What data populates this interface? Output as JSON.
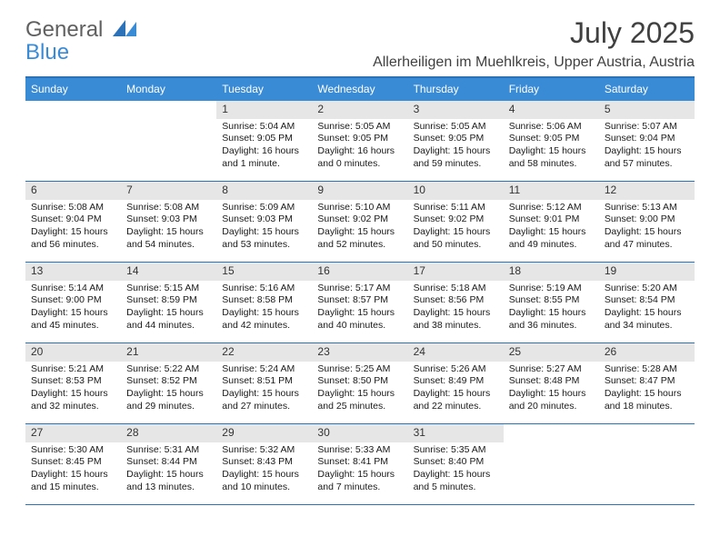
{
  "logo": {
    "line1": "General",
    "line2": "Blue"
  },
  "title": "July 2025",
  "location": "Allerheiligen im Muehlkreis, Upper Austria, Austria",
  "colors": {
    "header_bg": "#3a8bd6",
    "header_border": "#2c72b8",
    "daynum_bg": "#e6e6e6",
    "text": "#1a1a1a",
    "logo_gray": "#606060",
    "logo_blue": "#3a8bd6",
    "page_bg": "#ffffff"
  },
  "days_of_week": [
    "Sunday",
    "Monday",
    "Tuesday",
    "Wednesday",
    "Thursday",
    "Friday",
    "Saturday"
  ],
  "weeks": [
    [
      null,
      null,
      {
        "n": 1,
        "sunrise": "5:04 AM",
        "sunset": "9:05 PM",
        "daylight": "16 hours and 1 minute."
      },
      {
        "n": 2,
        "sunrise": "5:05 AM",
        "sunset": "9:05 PM",
        "daylight": "16 hours and 0 minutes."
      },
      {
        "n": 3,
        "sunrise": "5:05 AM",
        "sunset": "9:05 PM",
        "daylight": "15 hours and 59 minutes."
      },
      {
        "n": 4,
        "sunrise": "5:06 AM",
        "sunset": "9:05 PM",
        "daylight": "15 hours and 58 minutes."
      },
      {
        "n": 5,
        "sunrise": "5:07 AM",
        "sunset": "9:04 PM",
        "daylight": "15 hours and 57 minutes."
      }
    ],
    [
      {
        "n": 6,
        "sunrise": "5:08 AM",
        "sunset": "9:04 PM",
        "daylight": "15 hours and 56 minutes."
      },
      {
        "n": 7,
        "sunrise": "5:08 AM",
        "sunset": "9:03 PM",
        "daylight": "15 hours and 54 minutes."
      },
      {
        "n": 8,
        "sunrise": "5:09 AM",
        "sunset": "9:03 PM",
        "daylight": "15 hours and 53 minutes."
      },
      {
        "n": 9,
        "sunrise": "5:10 AM",
        "sunset": "9:02 PM",
        "daylight": "15 hours and 52 minutes."
      },
      {
        "n": 10,
        "sunrise": "5:11 AM",
        "sunset": "9:02 PM",
        "daylight": "15 hours and 50 minutes."
      },
      {
        "n": 11,
        "sunrise": "5:12 AM",
        "sunset": "9:01 PM",
        "daylight": "15 hours and 49 minutes."
      },
      {
        "n": 12,
        "sunrise": "5:13 AM",
        "sunset": "9:00 PM",
        "daylight": "15 hours and 47 minutes."
      }
    ],
    [
      {
        "n": 13,
        "sunrise": "5:14 AM",
        "sunset": "9:00 PM",
        "daylight": "15 hours and 45 minutes."
      },
      {
        "n": 14,
        "sunrise": "5:15 AM",
        "sunset": "8:59 PM",
        "daylight": "15 hours and 44 minutes."
      },
      {
        "n": 15,
        "sunrise": "5:16 AM",
        "sunset": "8:58 PM",
        "daylight": "15 hours and 42 minutes."
      },
      {
        "n": 16,
        "sunrise": "5:17 AM",
        "sunset": "8:57 PM",
        "daylight": "15 hours and 40 minutes."
      },
      {
        "n": 17,
        "sunrise": "5:18 AM",
        "sunset": "8:56 PM",
        "daylight": "15 hours and 38 minutes."
      },
      {
        "n": 18,
        "sunrise": "5:19 AM",
        "sunset": "8:55 PM",
        "daylight": "15 hours and 36 minutes."
      },
      {
        "n": 19,
        "sunrise": "5:20 AM",
        "sunset": "8:54 PM",
        "daylight": "15 hours and 34 minutes."
      }
    ],
    [
      {
        "n": 20,
        "sunrise": "5:21 AM",
        "sunset": "8:53 PM",
        "daylight": "15 hours and 32 minutes."
      },
      {
        "n": 21,
        "sunrise": "5:22 AM",
        "sunset": "8:52 PM",
        "daylight": "15 hours and 29 minutes."
      },
      {
        "n": 22,
        "sunrise": "5:24 AM",
        "sunset": "8:51 PM",
        "daylight": "15 hours and 27 minutes."
      },
      {
        "n": 23,
        "sunrise": "5:25 AM",
        "sunset": "8:50 PM",
        "daylight": "15 hours and 25 minutes."
      },
      {
        "n": 24,
        "sunrise": "5:26 AM",
        "sunset": "8:49 PM",
        "daylight": "15 hours and 22 minutes."
      },
      {
        "n": 25,
        "sunrise": "5:27 AM",
        "sunset": "8:48 PM",
        "daylight": "15 hours and 20 minutes."
      },
      {
        "n": 26,
        "sunrise": "5:28 AM",
        "sunset": "8:47 PM",
        "daylight": "15 hours and 18 minutes."
      }
    ],
    [
      {
        "n": 27,
        "sunrise": "5:30 AM",
        "sunset": "8:45 PM",
        "daylight": "15 hours and 15 minutes."
      },
      {
        "n": 28,
        "sunrise": "5:31 AM",
        "sunset": "8:44 PM",
        "daylight": "15 hours and 13 minutes."
      },
      {
        "n": 29,
        "sunrise": "5:32 AM",
        "sunset": "8:43 PM",
        "daylight": "15 hours and 10 minutes."
      },
      {
        "n": 30,
        "sunrise": "5:33 AM",
        "sunset": "8:41 PM",
        "daylight": "15 hours and 7 minutes."
      },
      {
        "n": 31,
        "sunrise": "5:35 AM",
        "sunset": "8:40 PM",
        "daylight": "15 hours and 5 minutes."
      },
      null,
      null
    ]
  ],
  "labels": {
    "sunrise_prefix": "Sunrise: ",
    "sunset_prefix": "Sunset: ",
    "daylight_prefix": "Daylight: "
  }
}
